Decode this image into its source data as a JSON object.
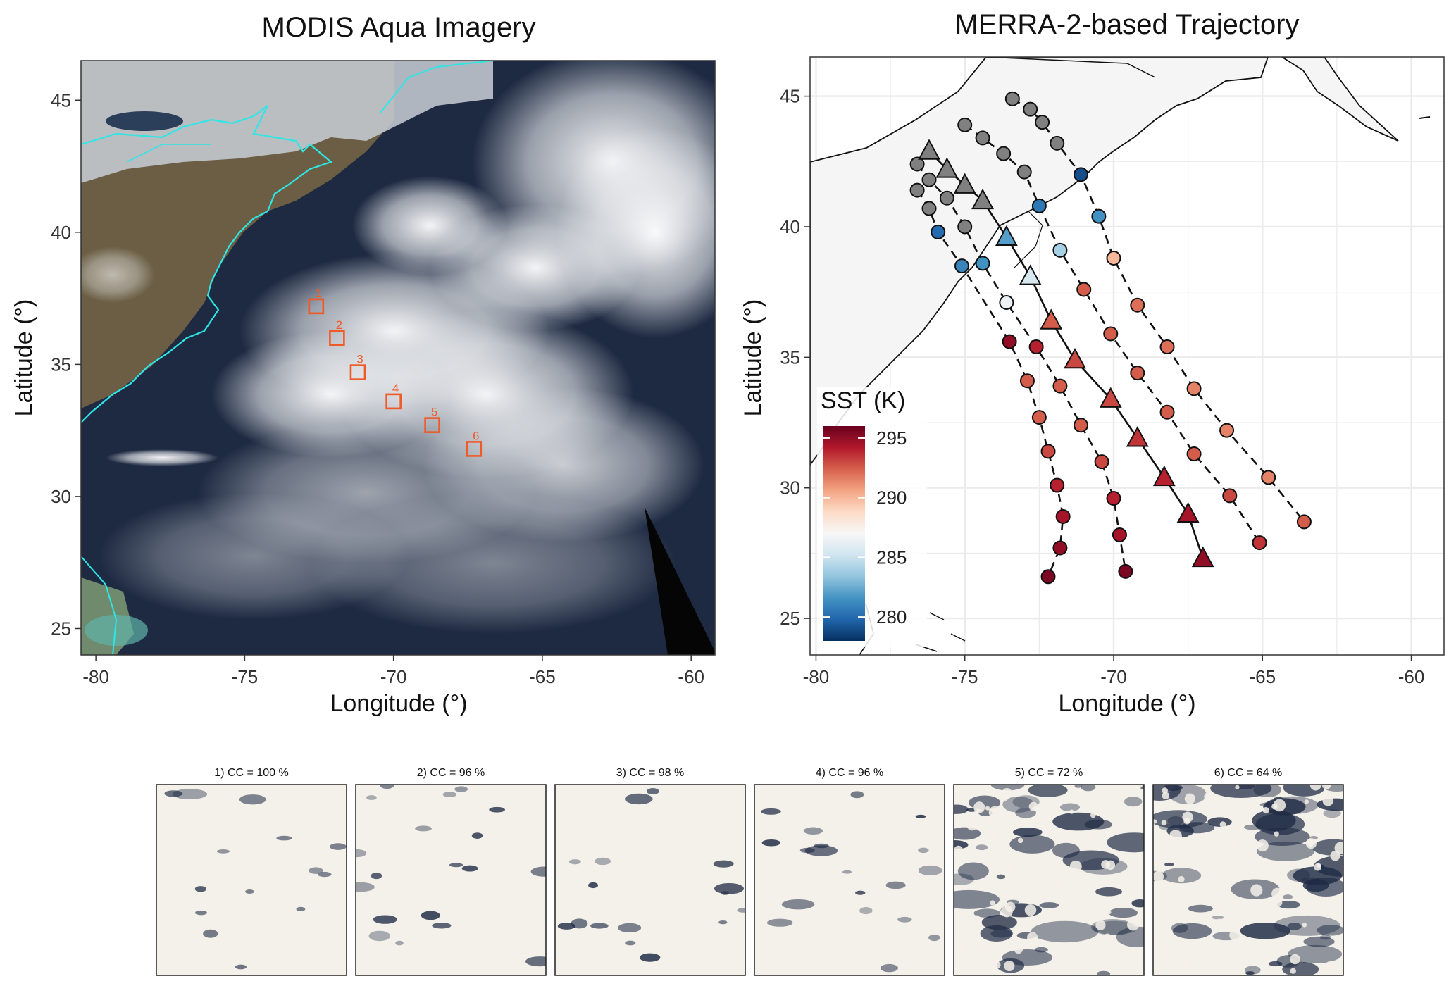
{
  "chart_data": [
    {
      "type": "scatter",
      "title": "MODIS Aqua Imagery",
      "xlabel": "Longitude (°)",
      "ylabel": "Latitude (°)",
      "xlim": [
        -80.5,
        -59.2
      ],
      "ylim": [
        24.0,
        46.5
      ],
      "xticks": [
        -80,
        -75,
        -70,
        -65,
        -60
      ],
      "yticks": [
        25,
        30,
        35,
        40,
        45
      ],
      "x_tick_labels": [
        "-80",
        "-75",
        "-70",
        "-65",
        "-60"
      ],
      "y_tick_labels": [
        "25",
        "30",
        "35",
        "40",
        "45"
      ],
      "background": "satellite true-color image",
      "coastline_color": "#2ee6e6",
      "marker_color": "#f05a28",
      "sample_boxes": [
        {
          "label": "1",
          "lon": -72.6,
          "lat": 37.2
        },
        {
          "label": "2",
          "lon": -71.9,
          "lat": 36.0
        },
        {
          "label": "3",
          "lon": -71.2,
          "lat": 34.7
        },
        {
          "label": "4",
          "lon": -70.0,
          "lat": 33.6
        },
        {
          "label": "5",
          "lon": -68.7,
          "lat": 32.7
        },
        {
          "label": "6",
          "lon": -67.3,
          "lat": 31.8
        }
      ]
    },
    {
      "type": "line",
      "title": "MERRA-2-based Trajectory",
      "xlabel": "Longitude (°)",
      "ylabel": "Latitude (°)",
      "xlim": [
        -80.2,
        -58.9
      ],
      "ylim": [
        23.6,
        46.5
      ],
      "xticks": [
        -80,
        -75,
        -70,
        -65,
        -60
      ],
      "yticks": [
        25,
        30,
        35,
        40,
        45
      ],
      "x_tick_labels": [
        "-80",
        "-75",
        "-70",
        "-65",
        "-60"
      ],
      "y_tick_labels": [
        "25",
        "30",
        "35",
        "40",
        "45"
      ],
      "grid": true,
      "legend": {
        "title": "SST (K)",
        "placement": "bottom-left",
        "ticks": [
          "280",
          "285",
          "290",
          "295"
        ],
        "range": [
          278,
          296
        ]
      },
      "land_color": "#e6e6e6",
      "no_sst_color": "#808080",
      "colorscale": [
        "#053061",
        "#2166ac",
        "#4393c3",
        "#92c5de",
        "#d1e5f0",
        "#f7f7f7",
        "#fddbc7",
        "#f4a582",
        "#d6604d",
        "#b2182b",
        "#67001f"
      ],
      "center_trajectory": {
        "marker": "triangle",
        "line": "solid",
        "points": [
          {
            "lon": -76.2,
            "lat": 42.9,
            "sst": null
          },
          {
            "lon": -75.6,
            "lat": 42.2,
            "sst": null
          },
          {
            "lon": -75.0,
            "lat": 41.6,
            "sst": null
          },
          {
            "lon": -74.4,
            "lat": 41.0,
            "sst": null
          },
          {
            "lon": -73.6,
            "lat": 39.6,
            "sst": 282
          },
          {
            "lon": -72.8,
            "lat": 38.1,
            "sst": 285.5
          },
          {
            "lon": -72.1,
            "lat": 36.4,
            "sst": 292.5
          },
          {
            "lon": -71.3,
            "lat": 34.9,
            "sst": 293
          },
          {
            "lon": -70.1,
            "lat": 33.4,
            "sst": 293
          },
          {
            "lon": -69.2,
            "lat": 31.9,
            "sst": 293.5
          },
          {
            "lon": -68.3,
            "lat": 30.4,
            "sst": 294
          },
          {
            "lon": -67.5,
            "lat": 29.0,
            "sst": 294.5
          },
          {
            "lon": -67.0,
            "lat": 27.3,
            "sst": 295
          }
        ]
      },
      "other_trajectories": [
        {
          "marker": "circle",
          "line": "dashed",
          "points": [
            {
              "lon": -73.4,
              "lat": 44.9,
              "sst": null
            },
            {
              "lon": -72.8,
              "lat": 44.5,
              "sst": null
            },
            {
              "lon": -72.4,
              "lat": 44.0,
              "sst": null
            },
            {
              "lon": -71.9,
              "lat": 43.2,
              "sst": null
            },
            {
              "lon": -71.1,
              "lat": 42.0,
              "sst": 279
            },
            {
              "lon": -70.5,
              "lat": 40.4,
              "sst": 281.5
            },
            {
              "lon": -70.0,
              "lat": 38.8,
              "sst": 290
            },
            {
              "lon": -69.2,
              "lat": 37.0,
              "sst": 292
            },
            {
              "lon": -68.2,
              "lat": 35.4,
              "sst": 292
            },
            {
              "lon": -67.3,
              "lat": 33.8,
              "sst": 291.5
            },
            {
              "lon": -66.2,
              "lat": 32.2,
              "sst": 291.5
            },
            {
              "lon": -64.8,
              "lat": 30.4,
              "sst": 291.5
            },
            {
              "lon": -63.6,
              "lat": 28.7,
              "sst": 292.5
            }
          ]
        },
        {
          "marker": "circle",
          "line": "dashed",
          "points": [
            {
              "lon": -75.0,
              "lat": 43.9,
              "sst": null
            },
            {
              "lon": -74.4,
              "lat": 43.4,
              "sst": null
            },
            {
              "lon": -73.7,
              "lat": 42.8,
              "sst": null
            },
            {
              "lon": -73.0,
              "lat": 42.1,
              "sst": null
            },
            {
              "lon": -72.5,
              "lat": 40.8,
              "sst": 280.5
            },
            {
              "lon": -71.8,
              "lat": 39.1,
              "sst": 284
            },
            {
              "lon": -71.0,
              "lat": 37.6,
              "sst": 292.5
            },
            {
              "lon": -70.1,
              "lat": 35.9,
              "sst": 292.5
            },
            {
              "lon": -69.2,
              "lat": 34.4,
              "sst": 292.5
            },
            {
              "lon": -68.2,
              "lat": 32.9,
              "sst": 292.5
            },
            {
              "lon": -67.3,
              "lat": 31.3,
              "sst": 292.5
            },
            {
              "lon": -66.1,
              "lat": 29.7,
              "sst": 293
            },
            {
              "lon": -65.1,
              "lat": 27.9,
              "sst": 293.5
            }
          ]
        },
        {
          "marker": "circle",
          "line": "dashed",
          "points": [
            {
              "lon": -76.6,
              "lat": 42.4,
              "sst": null
            },
            {
              "lon": -76.2,
              "lat": 41.8,
              "sst": null
            },
            {
              "lon": -75.6,
              "lat": 41.1,
              "sst": null
            },
            {
              "lon": -75.0,
              "lat": 40.0,
              "sst": null
            },
            {
              "lon": -74.4,
              "lat": 38.6,
              "sst": 281.5
            },
            {
              "lon": -73.6,
              "lat": 37.1,
              "sst": 286.5
            },
            {
              "lon": -72.6,
              "lat": 35.4,
              "sst": 294
            },
            {
              "lon": -71.8,
              "lat": 33.9,
              "sst": 292.5
            },
            {
              "lon": -71.1,
              "lat": 32.4,
              "sst": 292.5
            },
            {
              "lon": -70.4,
              "lat": 31.0,
              "sst": 293
            },
            {
              "lon": -70.0,
              "lat": 29.6,
              "sst": 294
            },
            {
              "lon": -69.8,
              "lat": 28.2,
              "sst": 294.5
            },
            {
              "lon": -69.6,
              "lat": 26.8,
              "sst": 295.5
            }
          ]
        },
        {
          "marker": "circle",
          "line": "dashed",
          "points": [
            {
              "lon": -76.6,
              "lat": 41.4,
              "sst": null
            },
            {
              "lon": -76.2,
              "lat": 40.7,
              "sst": null
            },
            {
              "lon": -75.9,
              "lat": 39.8,
              "sst": 280
            },
            {
              "lon": -75.1,
              "lat": 38.5,
              "sst": 281
            },
            {
              "lon": -73.5,
              "lat": 35.6,
              "sst": 295
            },
            {
              "lon": -72.9,
              "lat": 34.1,
              "sst": 292.5
            },
            {
              "lon": -72.5,
              "lat": 32.7,
              "sst": 292.5
            },
            {
              "lon": -72.2,
              "lat": 31.4,
              "sst": 293
            },
            {
              "lon": -71.9,
              "lat": 30.1,
              "sst": 294
            },
            {
              "lon": -71.7,
              "lat": 28.9,
              "sst": 294.5
            },
            {
              "lon": -71.8,
              "lat": 27.7,
              "sst": 295
            },
            {
              "lon": -72.2,
              "lat": 26.6,
              "sst": 295.5
            }
          ]
        }
      ]
    },
    {
      "type": "table",
      "title": "",
      "panels": [
        {
          "label": "1) CC = 100 %",
          "cc": 100
        },
        {
          "label": "2) CC = 96 %",
          "cc": 96
        },
        {
          "label": "3) CC = 98 %",
          "cc": 98
        },
        {
          "label": "4) CC = 96 %",
          "cc": 96
        },
        {
          "label": "5) CC = 72 %",
          "cc": 72
        },
        {
          "label": "6) CC = 64 %",
          "cc": 64
        }
      ],
      "cloud_color": "#f4f1ea",
      "ocean_color": "#1f2b45"
    }
  ]
}
